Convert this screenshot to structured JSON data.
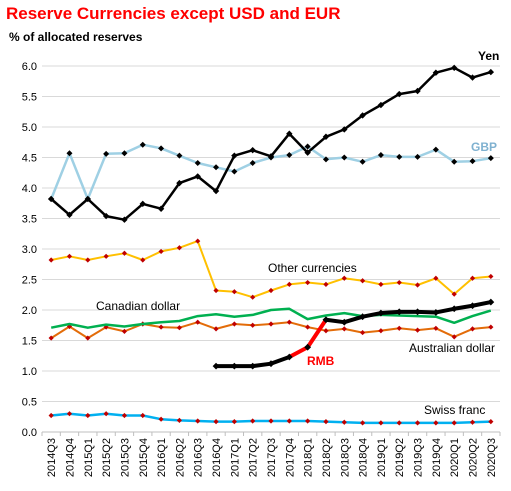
{
  "chart_data": {
    "type": "line",
    "title": "Reserve Currencies except USD and EUR",
    "subtitle": "% of allocated reserves",
    "xlabel": "",
    "ylabel": "",
    "ylim": [
      0,
      6.0
    ],
    "yticks": [
      "0.0",
      "0.5",
      "1.0",
      "1.5",
      "2.0",
      "2.5",
      "3.0",
      "3.5",
      "4.0",
      "4.5",
      "5.0",
      "5.5",
      "6.0"
    ],
    "grid": true,
    "legend": "none (series labeled directly on chart)",
    "categories": [
      "2014Q3",
      "2014Q4",
      "2015Q1",
      "2015Q2",
      "2015Q3",
      "2015Q4",
      "2016Q1",
      "2016Q2",
      "2016Q3",
      "2016Q4",
      "2017Q1",
      "2017Q2",
      "2017Q3",
      "2017Q4",
      "2018Q1",
      "2018Q2",
      "2018Q3",
      "2018Q4",
      "2019Q1",
      "2019Q2",
      "2019Q3",
      "2019Q4",
      "2020Q1",
      "2020Q2",
      "2020Q3"
    ],
    "series": [
      {
        "name": "Yen",
        "color": "#000000",
        "values": [
          3.82,
          3.56,
          3.82,
          3.54,
          3.48,
          3.74,
          3.66,
          4.08,
          4.19,
          3.95,
          4.53,
          4.62,
          4.52,
          4.89,
          4.58,
          4.84,
          4.96,
          5.19,
          5.36,
          5.54,
          5.59,
          5.89,
          5.97,
          5.81,
          5.9
        ]
      },
      {
        "name": "GBP",
        "color": "#9fd0e4",
        "values": [
          3.82,
          4.57,
          3.82,
          4.56,
          4.57,
          4.71,
          4.65,
          4.53,
          4.41,
          4.34,
          4.27,
          4.41,
          4.5,
          4.54,
          4.68,
          4.47,
          4.5,
          4.43,
          4.54,
          4.51,
          4.51,
          4.63,
          4.43,
          4.44,
          4.49
        ]
      },
      {
        "name": "Other currencies",
        "color": "#ffc000",
        "values": [
          2.82,
          2.88,
          2.82,
          2.88,
          2.93,
          2.82,
          2.96,
          3.02,
          3.13,
          2.32,
          2.3,
          2.21,
          2.32,
          2.42,
          2.45,
          2.42,
          2.52,
          2.48,
          2.42,
          2.45,
          2.41,
          2.52,
          2.26,
          2.52,
          2.55
        ]
      },
      {
        "name": "Canadian dollar",
        "color": "#00b050",
        "values": [
          1.71,
          1.77,
          1.71,
          1.76,
          1.73,
          1.77,
          1.8,
          1.82,
          1.9,
          1.93,
          1.89,
          1.92,
          2.0,
          2.02,
          1.85,
          1.91,
          1.95,
          1.9,
          1.92,
          1.91,
          1.9,
          1.89,
          1.79,
          1.9,
          1.99
        ]
      },
      {
        "name": "Australian dollar",
        "color": "#e36c09",
        "values": [
          1.54,
          1.73,
          1.54,
          1.72,
          1.65,
          1.77,
          1.72,
          1.71,
          1.8,
          1.69,
          1.77,
          1.75,
          1.77,
          1.8,
          1.72,
          1.66,
          1.69,
          1.63,
          1.66,
          1.7,
          1.67,
          1.7,
          1.56,
          1.69,
          1.72
        ]
      },
      {
        "name": "RMB",
        "color": "#000000",
        "start": "2016Q4",
        "values": [
          null,
          null,
          null,
          null,
          null,
          null,
          null,
          null,
          null,
          1.08,
          1.08,
          1.08,
          1.12,
          1.23,
          1.39,
          1.84,
          1.8,
          1.89,
          1.95,
          1.97,
          1.97,
          1.96,
          2.02,
          2.07,
          2.13
        ]
      },
      {
        "name": "Swiss franc",
        "color": "#00b0f0",
        "values": [
          0.27,
          0.3,
          0.27,
          0.3,
          0.27,
          0.27,
          0.21,
          0.19,
          0.18,
          0.17,
          0.17,
          0.18,
          0.18,
          0.18,
          0.18,
          0.17,
          0.16,
          0.15,
          0.15,
          0.15,
          0.15,
          0.15,
          0.15,
          0.16,
          0.17
        ]
      }
    ],
    "annotations": [
      {
        "text": "Yen",
        "color": "#000000"
      },
      {
        "text": "GBP",
        "color": "#7fb1d0"
      },
      {
        "text": "Other currencies",
        "color": "#000000"
      },
      {
        "text": "Canadian dollar",
        "color": "#000000"
      },
      {
        "text": "Australian dollar",
        "color": "#000000"
      },
      {
        "text": "RMB",
        "color": "#ff0000"
      },
      {
        "text": "Swiss franc",
        "color": "#000000"
      }
    ]
  }
}
